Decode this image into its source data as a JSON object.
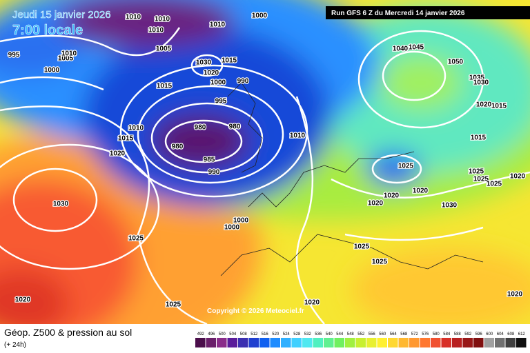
{
  "header": {
    "date": "Jeudi 15 janvier 2026",
    "time": "7:00 locale",
    "run": "Run GFS 6 Z du Mercredi 14 janvier 2026",
    "copyright": "Copyright © 2026 Meteociel.fr"
  },
  "footer": {
    "title": "Géop. Z500 & pression au sol",
    "subtitle": "(+ 24h)"
  },
  "isobar_labels": [
    "1010",
    "1010",
    "1010",
    "1010",
    "1000",
    "995",
    "1005",
    "1010",
    "1000",
    "1005",
    "1030",
    "1020",
    "1015",
    "990",
    "1015",
    "1000",
    "995",
    "980",
    "980",
    "980",
    "985",
    "990",
    "1010",
    "1015",
    "1020",
    "1010",
    "1030",
    "1025",
    "1000",
    "1000",
    "1040",
    "1045",
    "1050",
    "1035",
    "1030",
    "1020",
    "1015",
    "1015",
    "1025",
    "1025",
    "1025",
    "1025",
    "1020",
    "1020",
    "1020",
    "1020",
    "1030",
    "1025",
    "1025",
    "1020",
    "1025",
    "1020",
    "1020"
  ],
  "colorbar": {
    "values": [
      492,
      496,
      500,
      504,
      508,
      512,
      516,
      520,
      524,
      528,
      532,
      536,
      540,
      544,
      548,
      552,
      556,
      560,
      564,
      568,
      572,
      576,
      580,
      584,
      588,
      592,
      596,
      600,
      604,
      608,
      612
    ],
    "colors": [
      "#4b0f4b",
      "#6a1f6a",
      "#8a2d8a",
      "#5a1c9a",
      "#3b2fb0",
      "#2040d0",
      "#1060f0",
      "#1e8cff",
      "#30b0ff",
      "#40d0ff",
      "#50e8f0",
      "#50f0c0",
      "#60f090",
      "#70f060",
      "#a0f040",
      "#c8f030",
      "#e8f030",
      "#fff030",
      "#ffd830",
      "#ffb830",
      "#ff9830",
      "#ff7830",
      "#f05030",
      "#d83028",
      "#b82020",
      "#981818",
      "#801010",
      "#a0a0a0",
      "#707070",
      "#404040",
      "#101010"
    ]
  }
}
